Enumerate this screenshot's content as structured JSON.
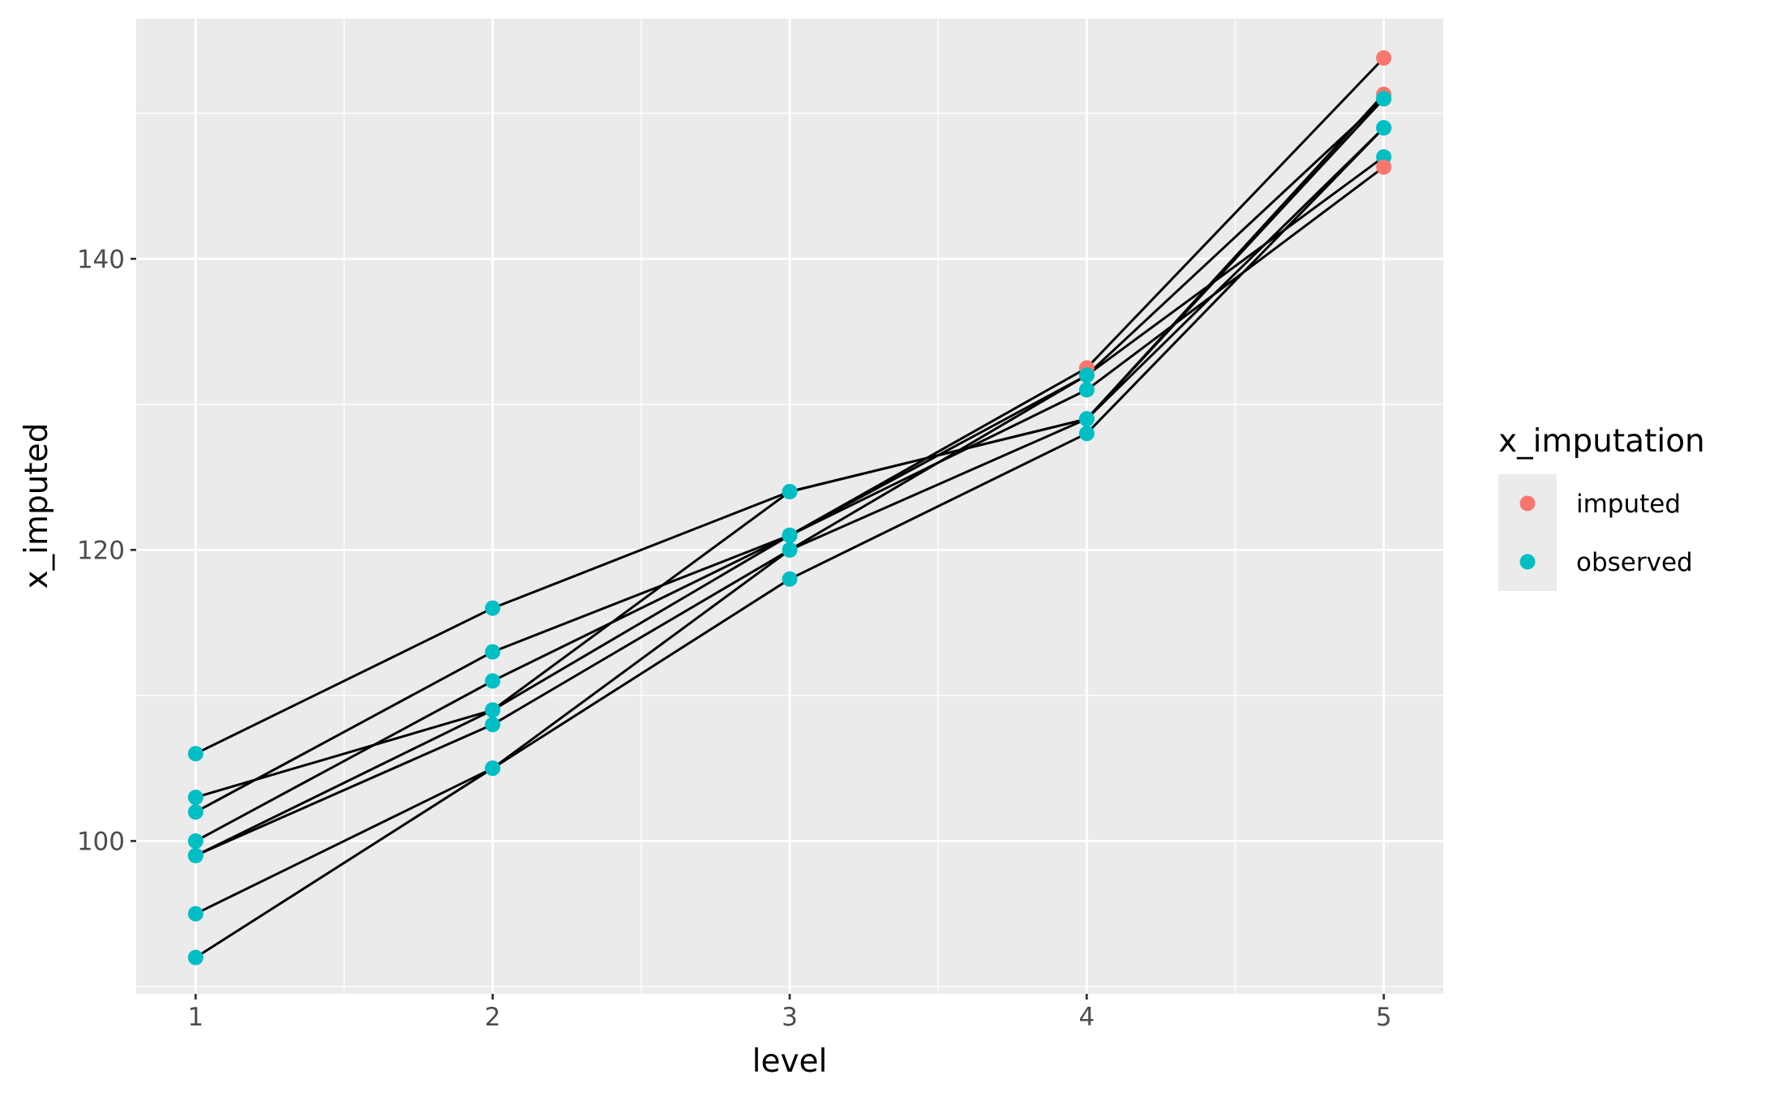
{
  "chart_data": {
    "type": "line",
    "xlabel": "level",
    "ylabel": "x_imputed",
    "xlim": [
      0.8,
      5.2
    ],
    "ylim": [
      89.5,
      156.5
    ],
    "x_ticks": [
      1,
      2,
      3,
      4,
      5
    ],
    "x_tick_labels": [
      "1",
      "2",
      "3",
      "4",
      "5"
    ],
    "x_minor_ticks": [
      1.5,
      2.5,
      3.5,
      4.5
    ],
    "y_ticks": [
      100,
      120,
      140
    ],
    "y_tick_labels": [
      "100",
      "120",
      "140"
    ],
    "y_minor_ticks": [
      90,
      110,
      130,
      150
    ],
    "grid": true,
    "line_color": "#000000",
    "panel_background": "#ebebeb",
    "legend": {
      "title": "x_imputation",
      "position": "right",
      "entries": [
        {
          "label": "imputed",
          "color": "#F8766D"
        },
        {
          "label": "observed",
          "color": "#00BFC4"
        }
      ]
    },
    "series": [
      {
        "points": [
          {
            "x": 1,
            "y": 106,
            "status": "observed"
          },
          {
            "x": 2,
            "y": 116,
            "status": "observed"
          },
          {
            "x": 3,
            "y": 124,
            "status": "observed"
          },
          {
            "x": 4,
            "y": 129,
            "status": "observed"
          },
          {
            "x": 5,
            "y": 149,
            "status": "observed"
          }
        ]
      },
      {
        "points": [
          {
            "x": 1,
            "y": 103,
            "status": "observed"
          },
          {
            "x": 2,
            "y": 109,
            "status": "observed"
          },
          {
            "x": 3,
            "y": 124,
            "status": "observed"
          },
          {
            "x": 4,
            "y": 129,
            "status": "observed"
          },
          {
            "x": 5,
            "y": 151.3,
            "status": "imputed"
          }
        ]
      },
      {
        "points": [
          {
            "x": 1,
            "y": 102,
            "status": "observed"
          },
          {
            "x": 2,
            "y": 113,
            "status": "observed"
          },
          {
            "x": 3,
            "y": 121,
            "status": "observed"
          },
          {
            "x": 4,
            "y": 132.5,
            "status": "imputed"
          },
          {
            "x": 5,
            "y": 153.8,
            "status": "imputed"
          }
        ]
      },
      {
        "points": [
          {
            "x": 1,
            "y": 100,
            "status": "observed"
          },
          {
            "x": 2,
            "y": 111,
            "status": "observed"
          },
          {
            "x": 3,
            "y": 121,
            "status": "observed"
          },
          {
            "x": 4,
            "y": 132,
            "status": "observed"
          },
          {
            "x": 5,
            "y": 147,
            "status": "observed"
          }
        ]
      },
      {
        "points": [
          {
            "x": 1,
            "y": 99,
            "status": "observed"
          },
          {
            "x": 2,
            "y": 109,
            "status": "observed"
          },
          {
            "x": 3,
            "y": 121,
            "status": "observed"
          },
          {
            "x": 4,
            "y": 131,
            "status": "observed"
          },
          {
            "x": 5,
            "y": 146.3,
            "status": "imputed"
          }
        ]
      },
      {
        "points": [
          {
            "x": 1,
            "y": 99,
            "status": "observed"
          },
          {
            "x": 2,
            "y": 108,
            "status": "observed"
          },
          {
            "x": 3,
            "y": 120,
            "status": "observed"
          },
          {
            "x": 4,
            "y": 132,
            "status": "observed"
          },
          {
            "x": 5,
            "y": 151,
            "status": "observed"
          }
        ]
      },
      {
        "points": [
          {
            "x": 1,
            "y": 95,
            "status": "observed"
          },
          {
            "x": 2,
            "y": 105,
            "status": "observed"
          },
          {
            "x": 3,
            "y": 118,
            "status": "observed"
          },
          {
            "x": 4,
            "y": 128,
            "status": "observed"
          },
          {
            "x": 5,
            "y": 149,
            "status": "observed"
          }
        ]
      },
      {
        "points": [
          {
            "x": 1,
            "y": 92,
            "status": "observed"
          },
          {
            "x": 2,
            "y": 105,
            "status": "observed"
          },
          {
            "x": 3,
            "y": 120,
            "status": "observed"
          },
          {
            "x": 4,
            "y": 129,
            "status": "observed"
          },
          {
            "x": 5,
            "y": 151,
            "status": "observed"
          }
        ]
      }
    ]
  }
}
